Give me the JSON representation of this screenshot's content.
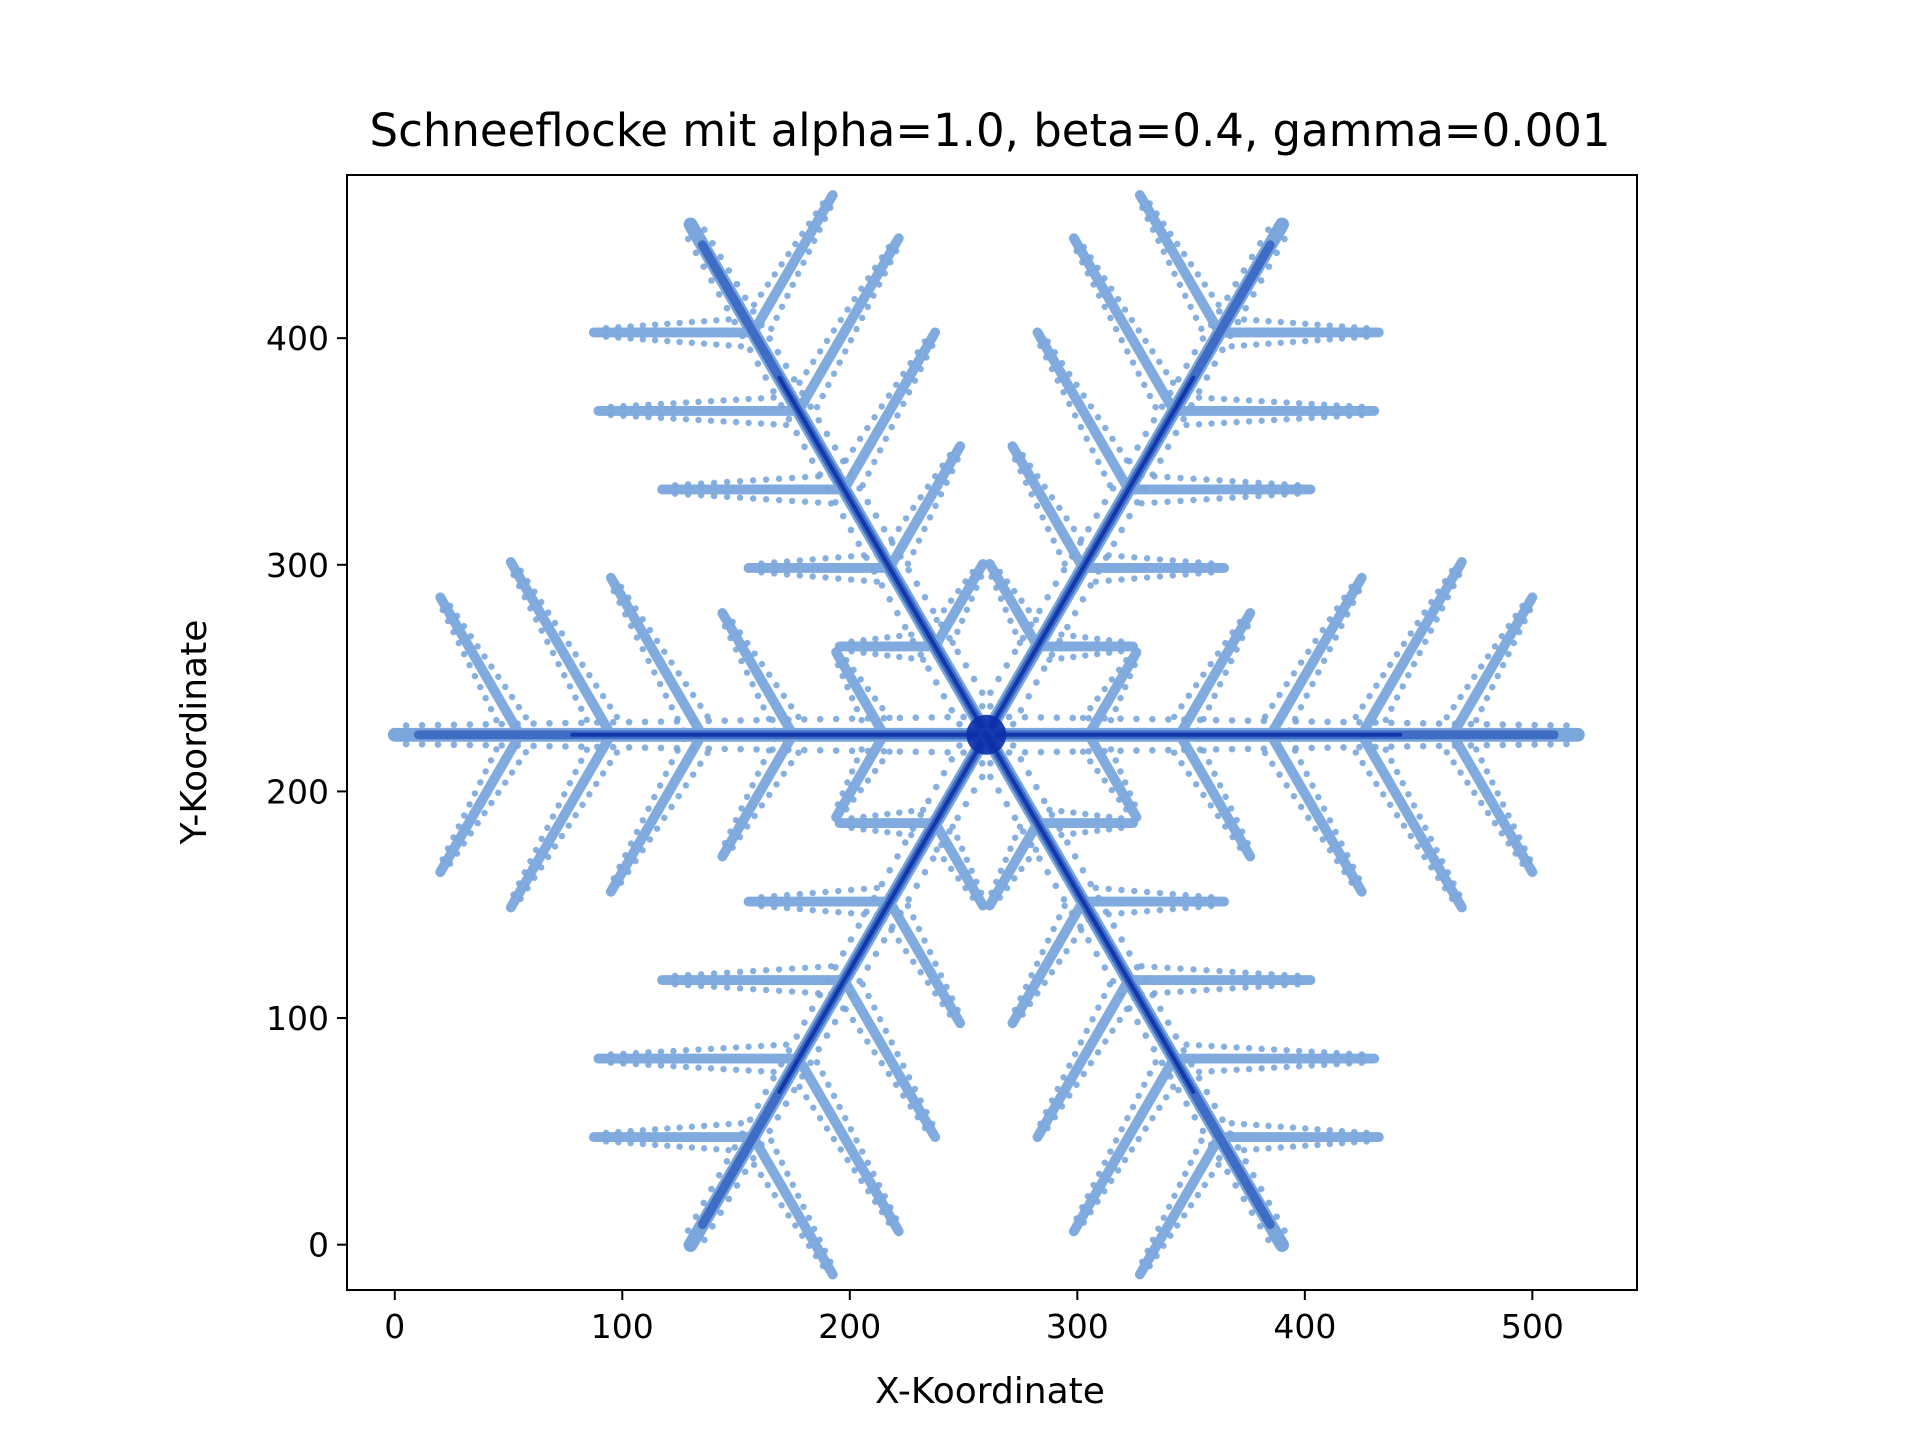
{
  "chart_data": {
    "type": "scatter",
    "title": "Schneeflocke mit alpha=1.0, beta=0.4, gamma=0.001",
    "xlabel": "X-Koordinate",
    "ylabel": "Y-Koordinate",
    "xlim": [
      -21,
      546
    ],
    "ylim": [
      -20,
      472
    ],
    "xticks": [
      0,
      100,
      200,
      300,
      400,
      500
    ],
    "yticks": [
      0,
      100,
      200,
      300,
      400
    ],
    "xtick_labels": [
      "0",
      "100",
      "200",
      "300",
      "400",
      "500"
    ],
    "ytick_labels": [
      "0",
      "100",
      "200",
      "300",
      "400"
    ],
    "grid": false,
    "legend": "none",
    "center": [
      260,
      225
    ],
    "arm_length": 260,
    "arm_count": 6,
    "arm_angles_deg": [
      0,
      60,
      120,
      180,
      240,
      300
    ],
    "side_branches_offsets": [
      45,
      85,
      125,
      165,
      205
    ],
    "side_branch_lengths": [
      42,
      62,
      80,
      88,
      70
    ],
    "colors": {
      "core": "#0a2fa8",
      "mid": "#3f6cc4",
      "edge": "#7aa6dc",
      "axes": "#000000"
    }
  }
}
